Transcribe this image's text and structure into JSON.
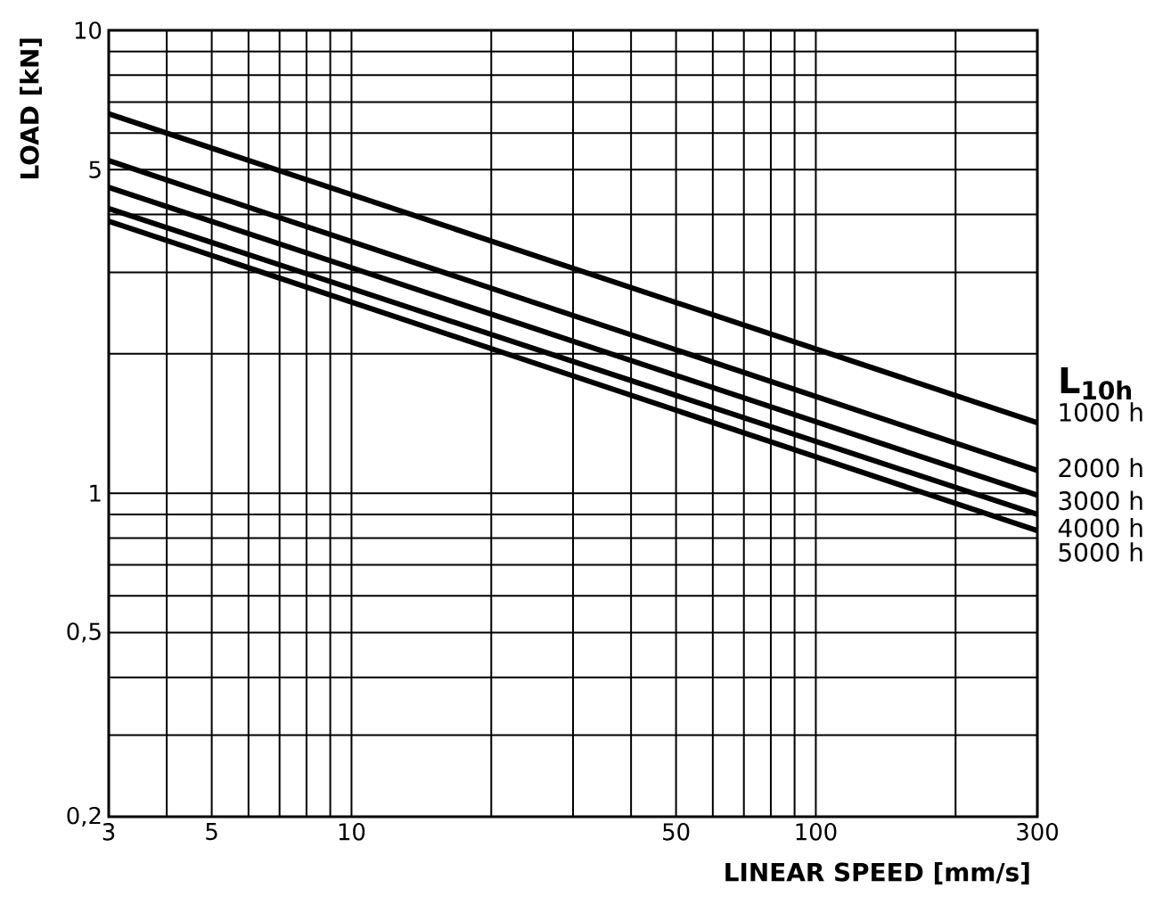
{
  "chart_data": {
    "type": "line",
    "xlabel": "LINEAR SPEED  [mm/s]",
    "ylabel": "LOAD  [kN]",
    "legend_title": "L$_{10h}$",
    "log": "xy",
    "grid": true,
    "x": [
      3,
      300
    ],
    "xlim": [
      3,
      300
    ],
    "ylim": [
      0.2,
      10
    ],
    "xticks": [
      3,
      {
        "value": 4,
        "label": null
      },
      5,
      {
        "value": 6,
        "label": null
      },
      {
        "value": 7,
        "label": null
      },
      {
        "value": 8,
        "label": null
      },
      {
        "value": 9,
        "label": null
      },
      10,
      {
        "value": 20,
        "label": null
      },
      {
        "value": 30,
        "label": null
      },
      {
        "value": 40,
        "label": null
      },
      50,
      {
        "value": 60,
        "label": null
      },
      {
        "value": 70,
        "label": null
      },
      {
        "value": 80,
        "label": null
      },
      {
        "value": 90,
        "label": null
      },
      100,
      {
        "value": 200,
        "label": null
      },
      300
    ],
    "yticks": [
      {
        "value": 0.2,
        "label": "0,2"
      },
      {
        "value": 0.3,
        "label": null
      },
      {
        "value": 0.4,
        "label": null
      },
      {
        "value": 0.5,
        "label": "0,5"
      },
      {
        "value": 0.6,
        "label": null
      },
      {
        "value": 0.7,
        "label": null
      },
      {
        "value": 0.8,
        "label": null
      },
      {
        "value": 0.9,
        "label": null
      },
      1,
      {
        "value": 2,
        "label": null
      },
      {
        "value": 3,
        "label": null
      },
      {
        "value": 4,
        "label": null
      },
      5,
      {
        "value": 6,
        "label": null
      },
      {
        "value": 7,
        "label": null
      },
      {
        "value": 8,
        "label": null
      },
      {
        "value": 9,
        "label": null
      },
      10
    ],
    "series": [
      {
        "name": "1000  h",
        "color": "#000000",
        "values": [
          6.6,
          1.42
        ]
      },
      {
        "name": "2000  h",
        "color": "#000000",
        "values": [
          5.23,
          1.12
        ]
      },
      {
        "name": "3000  h",
        "color": "#000000",
        "values": [
          4.58,
          0.99
        ]
      },
      {
        "name": "4000  h",
        "color": "#000000",
        "values": [
          4.12,
          0.9
        ]
      },
      {
        "name": "5000  h",
        "color": "#000000",
        "values": [
          3.87,
          0.83
        ]
      }
    ]
  }
}
